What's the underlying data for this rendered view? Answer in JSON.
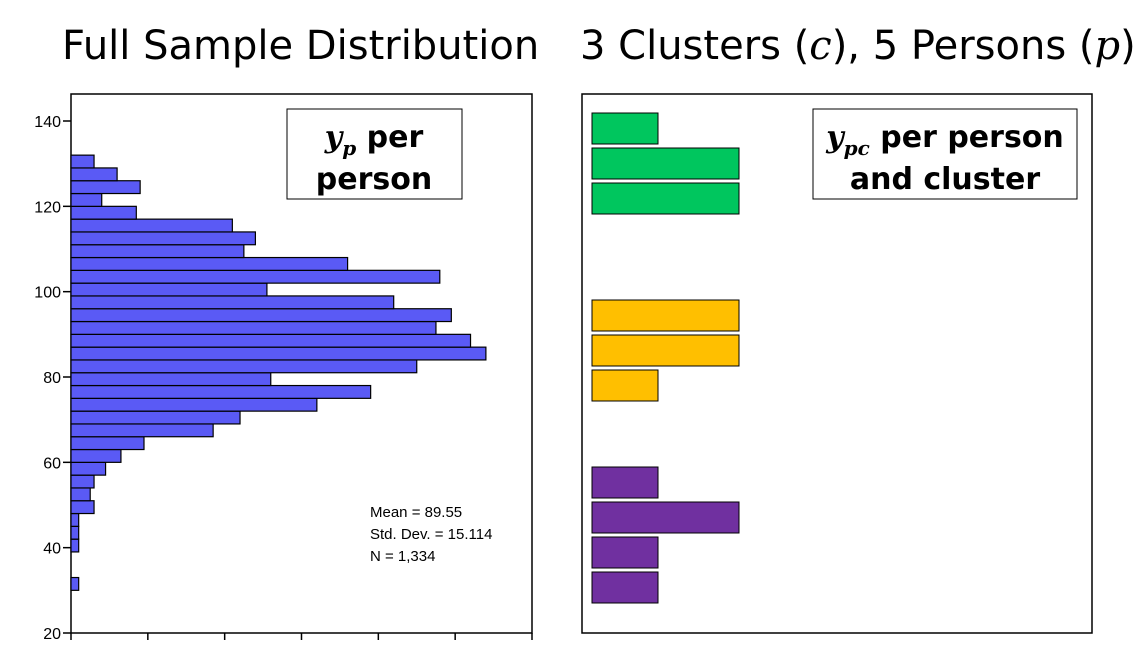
{
  "titles": {
    "left": "Full Sample Distribution",
    "right_prefix": "3 Clusters (",
    "right_c": "c",
    "right_mid": "), 5 Persons (",
    "right_p": "p",
    "right_suffix": ")"
  },
  "chart_data": [
    {
      "type": "bar",
      "orientation": "horizontal",
      "title": "Full Sample Distribution",
      "bin_width": 3,
      "ylim": [
        20,
        145
      ],
      "yticks": [
        20,
        40,
        60,
        80,
        100,
        120,
        140
      ],
      "xlim": [
        0,
        60
      ],
      "grid": false,
      "bins": [
        {
          "y": 31.5,
          "count": 1
        },
        {
          "y": 40.5,
          "count": 1
        },
        {
          "y": 43.5,
          "count": 1
        },
        {
          "y": 46.5,
          "count": 1
        },
        {
          "y": 49.5,
          "count": 3
        },
        {
          "y": 52.5,
          "count": 2.5
        },
        {
          "y": 55.5,
          "count": 3
        },
        {
          "y": 58.5,
          "count": 4.5
        },
        {
          "y": 61.5,
          "count": 6.5
        },
        {
          "y": 64.5,
          "count": 9.5
        },
        {
          "y": 67.5,
          "count": 18.5
        },
        {
          "y": 70.5,
          "count": 22
        },
        {
          "y": 73.5,
          "count": 32
        },
        {
          "y": 76.5,
          "count": 39
        },
        {
          "y": 79.5,
          "count": 26
        },
        {
          "y": 82.5,
          "count": 45
        },
        {
          "y": 85.5,
          "count": 54
        },
        {
          "y": 88.5,
          "count": 52
        },
        {
          "y": 91.5,
          "count": 47.5
        },
        {
          "y": 94.5,
          "count": 49.5
        },
        {
          "y": 97.5,
          "count": 42
        },
        {
          "y": 100.5,
          "count": 25.5
        },
        {
          "y": 103.5,
          "count": 48
        },
        {
          "y": 106.5,
          "count": 36
        },
        {
          "y": 109.5,
          "count": 22.5
        },
        {
          "y": 112.5,
          "count": 24
        },
        {
          "y": 115.5,
          "count": 21
        },
        {
          "y": 118.5,
          "count": 8.5
        },
        {
          "y": 121.5,
          "count": 4
        },
        {
          "y": 124.5,
          "count": 9
        },
        {
          "y": 127.5,
          "count": 6
        },
        {
          "y": 130.5,
          "count": 3
        }
      ],
      "bar_color": "#5a5af5",
      "annotation_box": {
        "var": "y",
        "sub": "p",
        "line1_suffix": " per",
        "line2": "person"
      },
      "stats": {
        "mean": "Mean = 89.55",
        "sd": "Std. Dev. = 15.114",
        "n": "N = 1,334"
      }
    },
    {
      "type": "bar",
      "orientation": "horizontal",
      "title": "3 Clusters (c), 5 Persons (p)",
      "annotation_box": {
        "var": "y",
        "sub": "pc",
        "line1_suffix": " per person",
        "line2": "and cluster"
      },
      "clusters": [
        {
          "color": "#00c65e",
          "values": [
            1,
            2,
            2
          ]
        },
        {
          "color": "#ffbf00",
          "values": [
            2,
            2,
            1
          ]
        },
        {
          "color": "#7030a0",
          "values": [
            1,
            2,
            1,
            1
          ]
        }
      ]
    }
  ]
}
